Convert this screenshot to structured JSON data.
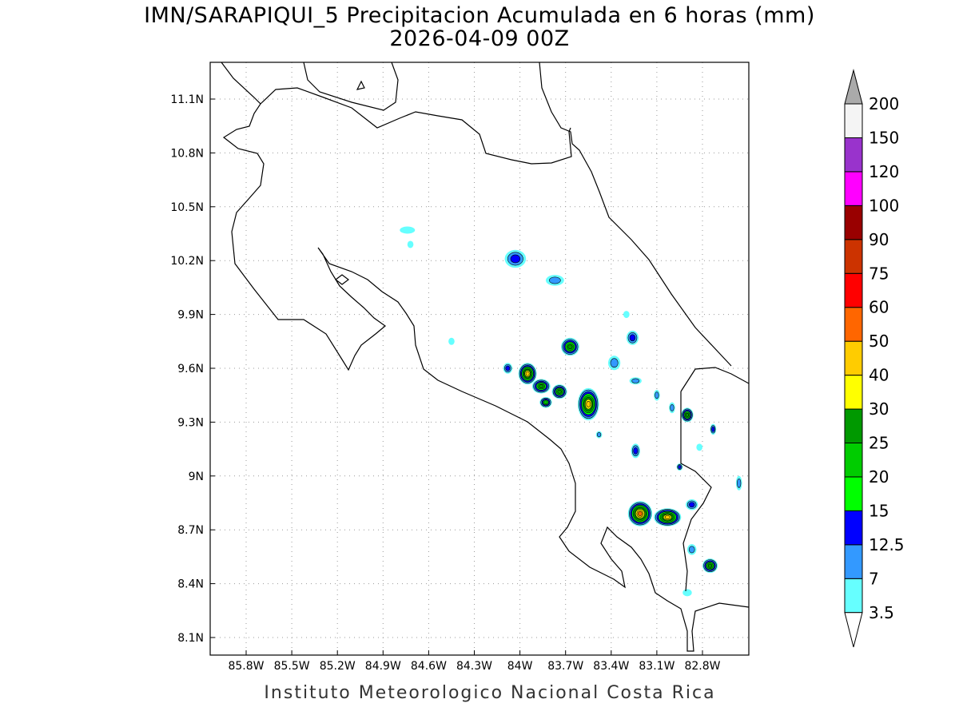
{
  "title": "IMN/SARAPIQUI_5 Precipitacion Acumulada en 6 horas (mm)",
  "subtitle": "2026-04-09 00Z",
  "footer": "Instituto Meteorologico Nacional Costa Rica",
  "chart_data": {
    "type": "heatmap",
    "units": "mm",
    "x_ticks": [
      "85.8W",
      "85.5W",
      "85.2W",
      "84.9W",
      "84.6W",
      "84.3W",
      "84W",
      "83.7W",
      "83.4W",
      "83.1W",
      "82.8W"
    ],
    "x_tick_values": [
      -85.8,
      -85.5,
      -85.2,
      -84.9,
      -84.6,
      -84.3,
      -84.0,
      -83.7,
      -83.4,
      -83.1,
      -82.8
    ],
    "y_ticks": [
      "11.1N",
      "10.8N",
      "10.5N",
      "10.2N",
      "9.9N",
      "9.6N",
      "9.3N",
      "9N",
      "8.7N",
      "8.4N",
      "8.1N"
    ],
    "y_tick_values": [
      11.1,
      10.8,
      10.5,
      10.2,
      9.9,
      9.6,
      9.3,
      9.0,
      8.7,
      8.4,
      8.1
    ],
    "lon_range": [
      -86.04,
      -82.5
    ],
    "lat_range": [
      8.03,
      11.3
    ],
    "grid": true,
    "legend": {
      "placement": "right",
      "levels": [
        "3.5",
        "7",
        "12.5",
        "15",
        "20",
        "25",
        "30",
        "40",
        "50",
        "60",
        "75",
        "90",
        "100",
        "120",
        "150",
        "200"
      ],
      "colors": [
        "#66ffff",
        "#3399ff",
        "#0000ff",
        "#00ff00",
        "#00cc00",
        "#009900",
        "#ffff00",
        "#ffcc00",
        "#ff6600",
        "#ff0000",
        "#cc3300",
        "#990000",
        "#ff00ff",
        "#9933cc",
        "#f4f4f4"
      ],
      "above_color": "#aaaaaa",
      "below_color": "#ffffff"
    },
    "cells": [
      {
        "lon": -84.03,
        "lat": 10.21,
        "max": 12.5,
        "rx": 0.07,
        "ry": 0.05
      },
      {
        "lon": -83.77,
        "lat": 10.09,
        "max": 7,
        "rx": 0.06,
        "ry": 0.03
      },
      {
        "lon": -83.67,
        "lat": 9.72,
        "max": 25,
        "rx": 0.06,
        "ry": 0.05
      },
      {
        "lon": -83.95,
        "lat": 9.57,
        "max": 40,
        "rx": 0.06,
        "ry": 0.06
      },
      {
        "lon": -83.86,
        "lat": 9.5,
        "max": 25,
        "rx": 0.06,
        "ry": 0.04
      },
      {
        "lon": -83.74,
        "lat": 9.47,
        "max": 25,
        "rx": 0.05,
        "ry": 0.04
      },
      {
        "lon": -83.83,
        "lat": 9.41,
        "max": 20,
        "rx": 0.04,
        "ry": 0.03
      },
      {
        "lon": -83.55,
        "lat": 9.4,
        "max": 40,
        "rx": 0.07,
        "ry": 0.09
      },
      {
        "lon": -84.08,
        "lat": 9.6,
        "max": 12.5,
        "rx": 0.03,
        "ry": 0.03
      },
      {
        "lon": -83.26,
        "lat": 9.77,
        "max": 12.5,
        "rx": 0.04,
        "ry": 0.04
      },
      {
        "lon": -83.38,
        "lat": 9.63,
        "max": 7,
        "rx": 0.04,
        "ry": 0.04
      },
      {
        "lon": -83.24,
        "lat": 9.53,
        "max": 7,
        "rx": 0.04,
        "ry": 0.02
      },
      {
        "lon": -82.9,
        "lat": 9.34,
        "max": 25,
        "rx": 0.04,
        "ry": 0.04
      },
      {
        "lon": -83.24,
        "lat": 9.14,
        "max": 12.5,
        "rx": 0.03,
        "ry": 0.04
      },
      {
        "lon": -83.21,
        "lat": 8.79,
        "max": 50,
        "rx": 0.08,
        "ry": 0.07
      },
      {
        "lon": -83.03,
        "lat": 8.77,
        "max": 40,
        "rx": 0.09,
        "ry": 0.05
      },
      {
        "lon": -82.75,
        "lat": 8.5,
        "max": 25,
        "rx": 0.05,
        "ry": 0.04
      },
      {
        "lon": -82.87,
        "lat": 8.59,
        "max": 7,
        "rx": 0.03,
        "ry": 0.03
      },
      {
        "lon": -82.95,
        "lat": 9.05,
        "max": 12.5,
        "rx": 0.02,
        "ry": 0.02
      },
      {
        "lon": -82.73,
        "lat": 9.26,
        "max": 12.5,
        "rx": 0.02,
        "ry": 0.03
      },
      {
        "lon": -82.56,
        "lat": 8.96,
        "max": 7,
        "rx": 0.02,
        "ry": 0.04
      },
      {
        "lon": -82.87,
        "lat": 8.84,
        "max": 12.5,
        "rx": 0.04,
        "ry": 0.03
      },
      {
        "lon": -84.74,
        "lat": 10.37,
        "max": 3.5,
        "rx": 0.05,
        "ry": 0.02
      },
      {
        "lon": -84.72,
        "lat": 10.29,
        "max": 3.5,
        "rx": 0.02,
        "ry": 0.02
      },
      {
        "lon": -84.45,
        "lat": 9.75,
        "max": 3.5,
        "rx": 0.02,
        "ry": 0.02
      },
      {
        "lon": -83.48,
        "lat": 9.23,
        "max": 7,
        "rx": 0.02,
        "ry": 0.02
      },
      {
        "lon": -83.3,
        "lat": 9.9,
        "max": 3.5,
        "rx": 0.02,
        "ry": 0.02
      },
      {
        "lon": -83.1,
        "lat": 9.45,
        "max": 7,
        "rx": 0.02,
        "ry": 0.03
      },
      {
        "lon": -83.0,
        "lat": 9.38,
        "max": 7,
        "rx": 0.02,
        "ry": 0.03
      },
      {
        "lon": -82.82,
        "lat": 9.16,
        "max": 3.5,
        "rx": 0.02,
        "ry": 0.02
      },
      {
        "lon": -82.9,
        "lat": 8.35,
        "max": 3.5,
        "rx": 0.03,
        "ry": 0.02
      }
    ]
  }
}
